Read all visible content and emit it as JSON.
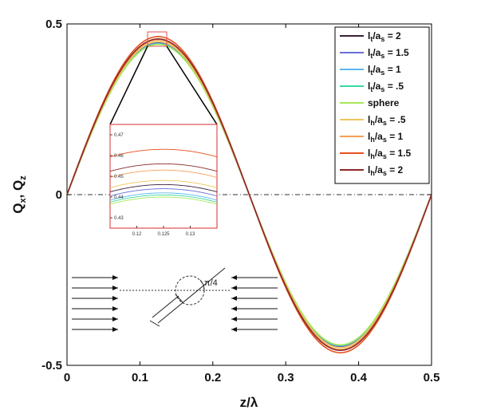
{
  "chart_data": {
    "type": "line",
    "xlabel": "z/λ",
    "ylabel": "Q_x, Q_z",
    "xlim": [
      0,
      0.5
    ],
    "ylim": [
      -0.5,
      0.5
    ],
    "xticks": [
      "0",
      "0.1",
      "0.2",
      "0.3",
      "0.4",
      "0.5"
    ],
    "yticks": [
      "0.5",
      "0",
      "-0.5"
    ],
    "grid": false,
    "legend_position": "top-right",
    "reference_line": {
      "y": 0,
      "style": "dash-dot"
    },
    "series": [
      {
        "name": "l_t/a_s = 2",
        "label_main": "l",
        "sub1": "t",
        "mid": "/a",
        "sub2": "s",
        "tail": " = 2",
        "color": "#3a1f3a",
        "amplitude": 0.446
      },
      {
        "name": "l_t/a_s = 1.5",
        "label_main": "l",
        "sub1": "t",
        "mid": "/a",
        "sub2": "s",
        "tail": " = 1.5",
        "color": "#6a6fd8",
        "amplitude": 0.444
      },
      {
        "name": "l_t/a_s = 1",
        "label_main": "l",
        "sub1": "t",
        "mid": "/a",
        "sub2": "s",
        "tail": " = 1",
        "color": "#5ab8f0",
        "amplitude": 0.442
      },
      {
        "name": "l_t/a_s = .5",
        "label_main": "l",
        "sub1": "t",
        "mid": "/a",
        "sub2": "s",
        "tail": " = .5",
        "color": "#3ad7a0",
        "amplitude": 0.441
      },
      {
        "name": "sphere",
        "label_main": "sphere",
        "sub1": "",
        "mid": "",
        "sub2": "",
        "tail": "",
        "color": "#a6e85a",
        "amplitude": 0.44
      },
      {
        "name": "l_h/a_s = .5",
        "label_main": "l",
        "sub1": "h",
        "mid": "/a",
        "sub2": "s",
        "tail": " = .5",
        "color": "#f0c65a",
        "amplitude": 0.448
      },
      {
        "name": "l_h/a_s = 1",
        "label_main": "l",
        "sub1": "h",
        "mid": "/a",
        "sub2": "s",
        "tail": " = 1",
        "color": "#f5a05a",
        "amplitude": 0.453
      },
      {
        "name": "l_h/a_s = 1.5",
        "label_main": "l",
        "sub1": "h",
        "mid": "/a",
        "sub2": "s",
        "tail": " = 1.5",
        "color": "#e8501f",
        "amplitude": 0.463
      },
      {
        "name": "l_h/a_s = 2",
        "label_main": "l",
        "sub1": "h",
        "mid": "/a",
        "sub2": "s",
        "tail": " = 2",
        "color": "#8a2a2a",
        "amplitude": 0.456
      }
    ],
    "inset": {
      "xlim": [
        0.115,
        0.135
      ],
      "ylim": [
        0.425,
        0.475
      ],
      "xticks": [
        "0.12",
        "0.125",
        "0.13"
      ],
      "yticks": [
        "0.47",
        "0.46",
        "0.45",
        "0.44",
        "0.43"
      ]
    },
    "annotation": {
      "angle_label": "π/4"
    }
  }
}
